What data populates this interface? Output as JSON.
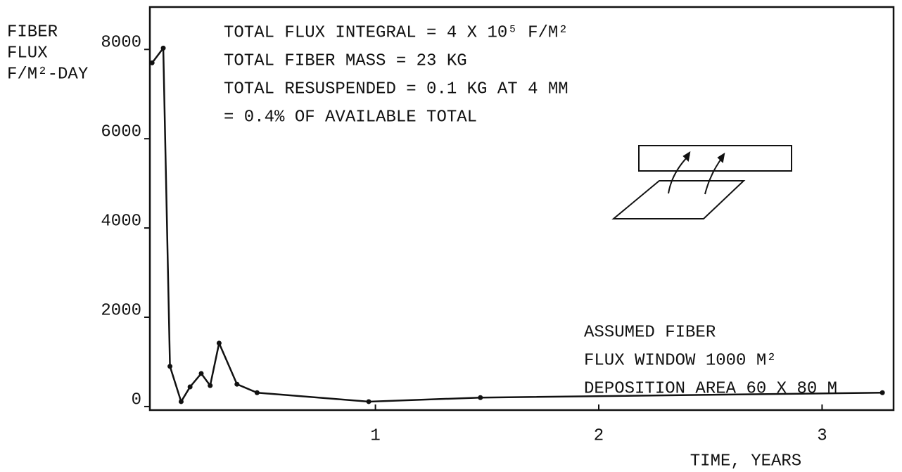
{
  "chart_data": {
    "type": "line",
    "ylabel": [
      "FIBER",
      "FLUX",
      "F/M²-DAY"
    ],
    "xlabel": "TIME, YEARS",
    "annotations": [
      "TOTAL FLUX INTEGRAL = 4 X 10⁵ F/M²",
      "TOTAL FIBER MASS = 23 KG",
      "TOTAL RESUSPENDED = 0.1 KG AT 4 MM",
      "= 0.4% OF AVAILABLE TOTAL"
    ],
    "notes": [
      "ASSUMED FIBER",
      "FLUX WINDOW  1000 M²",
      "DEPOSITION AREA 60 X 80 M"
    ],
    "x": [
      0,
      0.05,
      0.08,
      0.13,
      0.17,
      0.22,
      0.26,
      0.3,
      0.38,
      0.47,
      0.97,
      1.47,
      3.27
    ],
    "values": [
      7700,
      8030,
      900,
      110,
      440,
      740,
      470,
      1420,
      500,
      310,
      110,
      200,
      310
    ],
    "color": "#111111",
    "xlim": [
      -0.01,
      3.32
    ],
    "ylim": [
      -80,
      8950
    ],
    "xticks": [
      1,
      2,
      3
    ],
    "yticks": [
      0,
      2000,
      4000,
      6000,
      8000
    ]
  }
}
